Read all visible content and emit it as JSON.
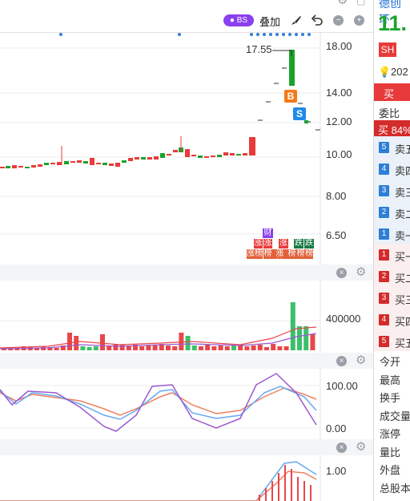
{
  "toolbar": {
    "bs_label": "BS",
    "overlay_label": "叠加",
    "brush_icon": "brush-icon",
    "undo_icon": "undo-icon",
    "minus_icon": "minus-icon",
    "plus_icon": "plus-icon"
  },
  "price_axis": [
    "18.00",
    "14.00",
    "12.00",
    "10.00",
    "8.00",
    "6.50"
  ],
  "high_label": "17.55",
  "markers": {
    "buy": "B",
    "sell": "S"
  },
  "tags": {
    "row1": [
      "财"
    ],
    "row2": [
      "涨",
      "涨",
      "涨",
      "跌"
    ],
    "row3": [
      "涨榜",
      "榜",
      "涨榜",
      "榜",
      "榜",
      "榜",
      "榜"
    ],
    "row2b": [
      "跌"
    ]
  },
  "volume_axis": "400000",
  "indicator_axis": [
    "100.00",
    "0.00"
  ],
  "bottom_axis": "1.00",
  "side_panel": {
    "name_partial": "德创环",
    "price_partial": "11.",
    "exchange_badge": "SH",
    "date_partial": "202",
    "buy_label": "买",
    "wei_bi": "委比",
    "wei_bi_value": "买 84%",
    "sell_rows": [
      {
        "num": "5",
        "label": "卖五"
      },
      {
        "num": "4",
        "label": "卖四"
      },
      {
        "num": "3",
        "label": "卖三"
      },
      {
        "num": "2",
        "label": "卖二"
      },
      {
        "num": "1",
        "label": "卖一"
      }
    ],
    "buy_rows": [
      {
        "num": "1",
        "label": "买一"
      },
      {
        "num": "2",
        "label": "买二"
      },
      {
        "num": "3",
        "label": "买三"
      },
      {
        "num": "4",
        "label": "买四"
      },
      {
        "num": "5",
        "label": "买五"
      }
    ],
    "stats": [
      "今开",
      "最高",
      "换手",
      "成交量",
      "涨停",
      "量比",
      "外盘",
      "总股本"
    ]
  },
  "colors": {
    "up": "#e83a3a",
    "down": "#1aa32c",
    "vol_up": "#e8474a",
    "vol_down": "#3cbf6b",
    "accent_purple": "#8a3ff0",
    "buy_marker": "#f57a1a",
    "sell_marker": "#1f8ae8"
  }
}
